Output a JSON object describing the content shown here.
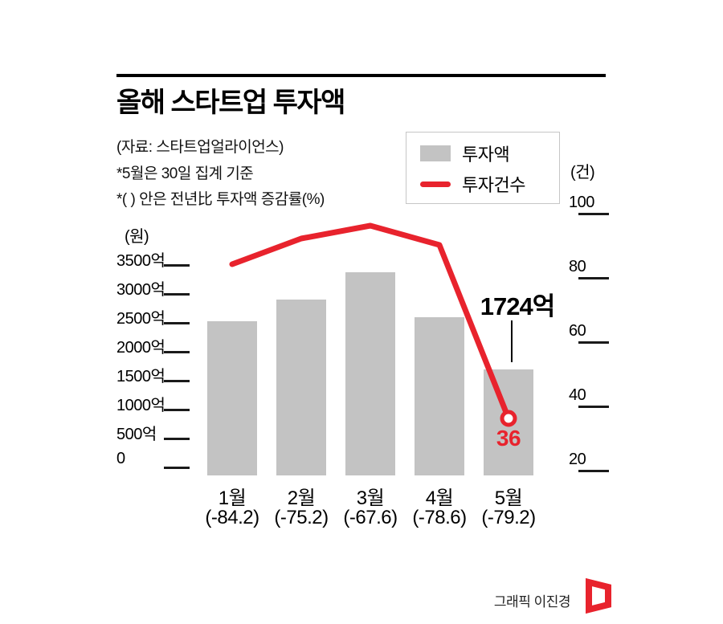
{
  "header": {
    "title": "올해 스타트업 투자액",
    "notes": [
      "(자료: 스타트업얼라이언스)",
      "*5월은 30일 집계 기준",
      "*( ) 안은 전년比 투자액 증감률(%)"
    ]
  },
  "legend": {
    "items": [
      {
        "label": "투자액",
        "type": "bar",
        "color": "#c3c3c3"
      },
      {
        "label": "투자건수",
        "type": "line",
        "color": "#e8232d"
      }
    ]
  },
  "colors": {
    "bar": "#c3c3c3",
    "accent": "#e8232d",
    "text": "#000000"
  },
  "chart_data": {
    "type": "bar+line",
    "title": "올해 스타트업 투자액",
    "categories": [
      "1월",
      "2월",
      "3월",
      "4월",
      "5월"
    ],
    "category_change_labels": [
      "(-84.2)",
      "(-75.2)",
      "(-67.6)",
      "(-78.6)",
      "(-79.2)"
    ],
    "series": [
      {
        "name": "투자액",
        "type": "bar",
        "axis": "left",
        "unit": "억원",
        "values": [
          2560,
          2930,
          3400,
          2620,
          1724
        ]
      },
      {
        "name": "투자건수",
        "type": "line",
        "axis": "right",
        "unit": "건",
        "values": [
          84,
          92,
          96,
          90,
          36
        ]
      }
    ],
    "left_axis": {
      "label": "(원)",
      "tick_labels": [
        "3500억",
        "3000억",
        "2500억",
        "2000억",
        "1500억",
        "1000억",
        "500억",
        "0"
      ],
      "tick_values": [
        3500,
        3000,
        2500,
        2000,
        1500,
        1000,
        500,
        0
      ],
      "range": [
        0,
        3500
      ]
    },
    "right_axis": {
      "label": "(건)",
      "tick_labels": [
        "100",
        "80",
        "60",
        "40",
        "20"
      ],
      "tick_values": [
        100,
        80,
        60,
        40,
        20
      ],
      "range": [
        20,
        100
      ]
    },
    "callouts": {
      "amount_label": "1724억",
      "count_label": "36"
    },
    "legend_position": "top-right",
    "grid": false
  },
  "footer": {
    "credit": "그래픽 이진경"
  }
}
